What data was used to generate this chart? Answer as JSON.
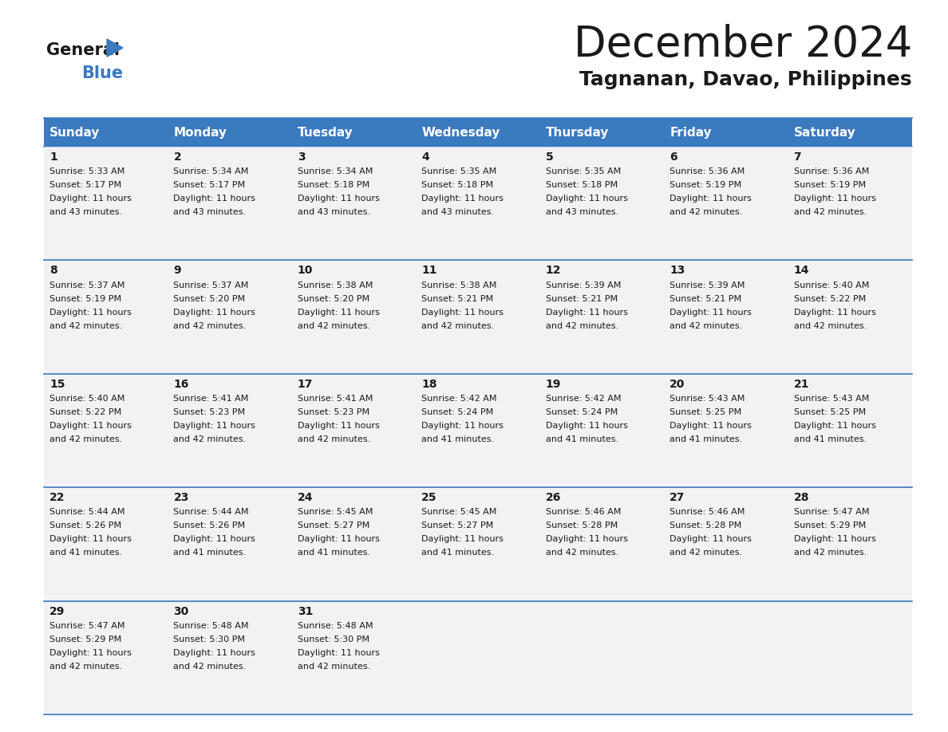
{
  "title": "December 2024",
  "subtitle": "Tagnanan, Davao, Philippines",
  "header_color": "#3a7abf",
  "header_text_color": "#ffffff",
  "cell_bg_color": "#f0f0f0",
  "cell_bg_alt": "#ffffff",
  "border_color": "#3a7abf",
  "days_of_week": [
    "Sunday",
    "Monday",
    "Tuesday",
    "Wednesday",
    "Thursday",
    "Friday",
    "Saturday"
  ],
  "calendar_data": [
    [
      {
        "day": 1,
        "sunrise": "5:33 AM",
        "sunset": "5:17 PM",
        "daylight_hours": 11,
        "daylight_minutes": 43
      },
      {
        "day": 2,
        "sunrise": "5:34 AM",
        "sunset": "5:17 PM",
        "daylight_hours": 11,
        "daylight_minutes": 43
      },
      {
        "day": 3,
        "sunrise": "5:34 AM",
        "sunset": "5:18 PM",
        "daylight_hours": 11,
        "daylight_minutes": 43
      },
      {
        "day": 4,
        "sunrise": "5:35 AM",
        "sunset": "5:18 PM",
        "daylight_hours": 11,
        "daylight_minutes": 43
      },
      {
        "day": 5,
        "sunrise": "5:35 AM",
        "sunset": "5:18 PM",
        "daylight_hours": 11,
        "daylight_minutes": 43
      },
      {
        "day": 6,
        "sunrise": "5:36 AM",
        "sunset": "5:19 PM",
        "daylight_hours": 11,
        "daylight_minutes": 42
      },
      {
        "day": 7,
        "sunrise": "5:36 AM",
        "sunset": "5:19 PM",
        "daylight_hours": 11,
        "daylight_minutes": 42
      }
    ],
    [
      {
        "day": 8,
        "sunrise": "5:37 AM",
        "sunset": "5:19 PM",
        "daylight_hours": 11,
        "daylight_minutes": 42
      },
      {
        "day": 9,
        "sunrise": "5:37 AM",
        "sunset": "5:20 PM",
        "daylight_hours": 11,
        "daylight_minutes": 42
      },
      {
        "day": 10,
        "sunrise": "5:38 AM",
        "sunset": "5:20 PM",
        "daylight_hours": 11,
        "daylight_minutes": 42
      },
      {
        "day": 11,
        "sunrise": "5:38 AM",
        "sunset": "5:21 PM",
        "daylight_hours": 11,
        "daylight_minutes": 42
      },
      {
        "day": 12,
        "sunrise": "5:39 AM",
        "sunset": "5:21 PM",
        "daylight_hours": 11,
        "daylight_minutes": 42
      },
      {
        "day": 13,
        "sunrise": "5:39 AM",
        "sunset": "5:21 PM",
        "daylight_hours": 11,
        "daylight_minutes": 42
      },
      {
        "day": 14,
        "sunrise": "5:40 AM",
        "sunset": "5:22 PM",
        "daylight_hours": 11,
        "daylight_minutes": 42
      }
    ],
    [
      {
        "day": 15,
        "sunrise": "5:40 AM",
        "sunset": "5:22 PM",
        "daylight_hours": 11,
        "daylight_minutes": 42
      },
      {
        "day": 16,
        "sunrise": "5:41 AM",
        "sunset": "5:23 PM",
        "daylight_hours": 11,
        "daylight_minutes": 42
      },
      {
        "day": 17,
        "sunrise": "5:41 AM",
        "sunset": "5:23 PM",
        "daylight_hours": 11,
        "daylight_minutes": 42
      },
      {
        "day": 18,
        "sunrise": "5:42 AM",
        "sunset": "5:24 PM",
        "daylight_hours": 11,
        "daylight_minutes": 41
      },
      {
        "day": 19,
        "sunrise": "5:42 AM",
        "sunset": "5:24 PM",
        "daylight_hours": 11,
        "daylight_minutes": 41
      },
      {
        "day": 20,
        "sunrise": "5:43 AM",
        "sunset": "5:25 PM",
        "daylight_hours": 11,
        "daylight_minutes": 41
      },
      {
        "day": 21,
        "sunrise": "5:43 AM",
        "sunset": "5:25 PM",
        "daylight_hours": 11,
        "daylight_minutes": 41
      }
    ],
    [
      {
        "day": 22,
        "sunrise": "5:44 AM",
        "sunset": "5:26 PM",
        "daylight_hours": 11,
        "daylight_minutes": 41
      },
      {
        "day": 23,
        "sunrise": "5:44 AM",
        "sunset": "5:26 PM",
        "daylight_hours": 11,
        "daylight_minutes": 41
      },
      {
        "day": 24,
        "sunrise": "5:45 AM",
        "sunset": "5:27 PM",
        "daylight_hours": 11,
        "daylight_minutes": 41
      },
      {
        "day": 25,
        "sunrise": "5:45 AM",
        "sunset": "5:27 PM",
        "daylight_hours": 11,
        "daylight_minutes": 41
      },
      {
        "day": 26,
        "sunrise": "5:46 AM",
        "sunset": "5:28 PM",
        "daylight_hours": 11,
        "daylight_minutes": 42
      },
      {
        "day": 27,
        "sunrise": "5:46 AM",
        "sunset": "5:28 PM",
        "daylight_hours": 11,
        "daylight_minutes": 42
      },
      {
        "day": 28,
        "sunrise": "5:47 AM",
        "sunset": "5:29 PM",
        "daylight_hours": 11,
        "daylight_minutes": 42
      }
    ],
    [
      {
        "day": 29,
        "sunrise": "5:47 AM",
        "sunset": "5:29 PM",
        "daylight_hours": 11,
        "daylight_minutes": 42
      },
      {
        "day": 30,
        "sunrise": "5:48 AM",
        "sunset": "5:30 PM",
        "daylight_hours": 11,
        "daylight_minutes": 42
      },
      {
        "day": 31,
        "sunrise": "5:48 AM",
        "sunset": "5:30 PM",
        "daylight_hours": 11,
        "daylight_minutes": 42
      },
      null,
      null,
      null,
      null
    ]
  ],
  "logo_triangle_color": "#3a7abf",
  "text_color_dark": "#1a1a1a",
  "cell_line_color": "#3a7abf",
  "title_fontsize": 38,
  "subtitle_fontsize": 18,
  "header_fontsize": 11,
  "day_num_fontsize": 10,
  "cell_text_fontsize": 8
}
